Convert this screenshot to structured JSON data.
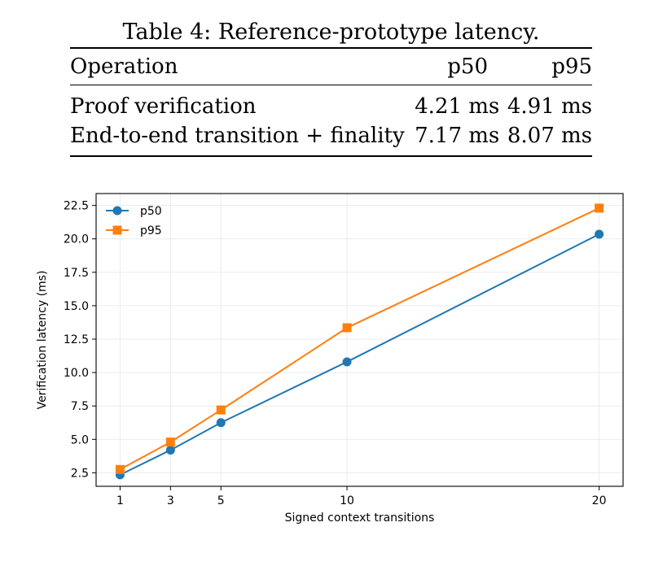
{
  "table": {
    "caption": "Table 4: Reference-prototype latency.",
    "headers": [
      "Operation",
      "p50",
      "p95"
    ],
    "rows": [
      [
        "Proof verification",
        "4.21 ms",
        "4.91 ms"
      ],
      [
        "End-to-end transition + finality",
        "7.17 ms",
        "8.07 ms"
      ]
    ]
  },
  "chart_data": {
    "type": "line",
    "title": "",
    "xlabel": "Signed context transitions",
    "ylabel": "Verification latency (ms)",
    "x": [
      1,
      3,
      5,
      10,
      20
    ],
    "xticks": [
      1,
      3,
      5,
      10,
      20
    ],
    "yticks": [
      2.5,
      5.0,
      7.5,
      10.0,
      12.5,
      15.0,
      17.5,
      20.0,
      22.5
    ],
    "xlim": [
      0.05,
      20.95
    ],
    "ylim": [
      1.49,
      23.39
    ],
    "grid": true,
    "legend": "top-left",
    "series": [
      {
        "name": "p50",
        "values": [
          2.35,
          4.2,
          6.25,
          10.8,
          20.35
        ],
        "color": "#1f77b4",
        "marker": "circle"
      },
      {
        "name": "p95",
        "values": [
          2.75,
          4.8,
          7.2,
          13.35,
          22.3
        ],
        "color": "#ff7f0e",
        "marker": "square"
      }
    ]
  }
}
